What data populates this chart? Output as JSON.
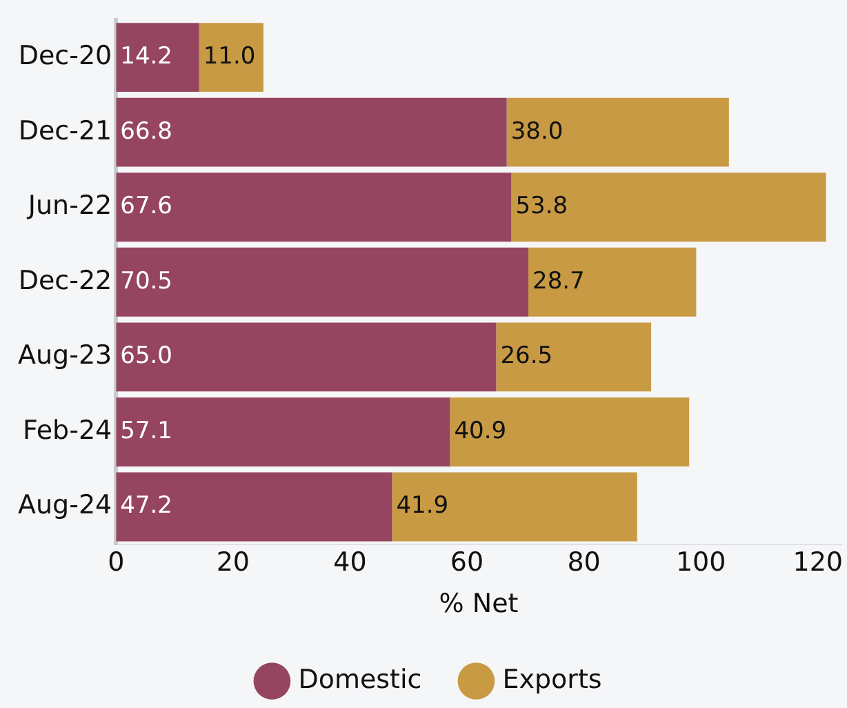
{
  "chart_data": {
    "type": "bar",
    "orientation": "horizontal",
    "stacked": true,
    "xlabel": "% Net",
    "categories": [
      "Dec-20",
      "Dec-21",
      "Jun-22",
      "Dec-22",
      "Aug-23",
      "Feb-24",
      "Aug-24"
    ],
    "series": [
      {
        "name": "Domestic",
        "color": "#95455f",
        "values": [
          14.2,
          66.8,
          67.6,
          70.5,
          65.0,
          57.1,
          47.2
        ],
        "value_labels": [
          "14.2",
          "66.8",
          "67.6",
          "70.5",
          "65.0",
          "57.1",
          "47.2"
        ]
      },
      {
        "name": "Exports",
        "color": "#c99a44",
        "values": [
          11.0,
          38.0,
          53.8,
          28.7,
          26.5,
          40.9,
          41.9
        ],
        "value_labels": [
          "11.0",
          "38.0",
          "53.8",
          "28.7",
          "26.5",
          "40.9",
          "41.9"
        ]
      }
    ],
    "xlim": [
      0,
      124
    ],
    "xticks": [
      0,
      20,
      40,
      60,
      80,
      100,
      120
    ],
    "grid": false,
    "legend": "bottom"
  }
}
